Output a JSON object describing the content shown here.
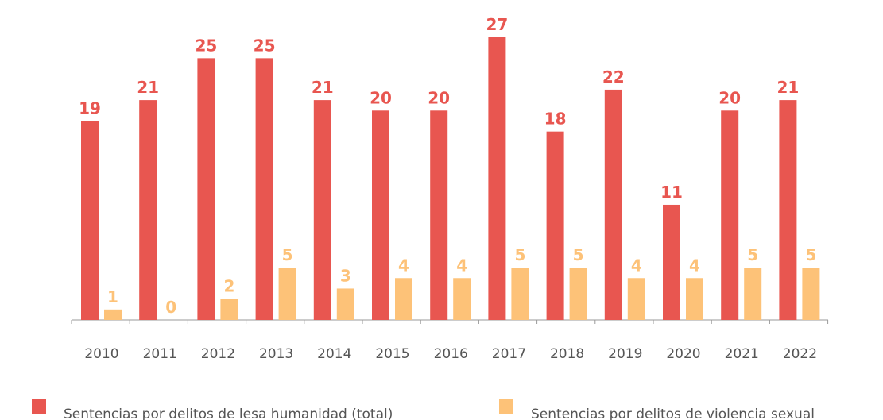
{
  "chart_data": {
    "type": "bar",
    "categories": [
      "2010",
      "2011",
      "2012",
      "2013",
      "2014",
      "2015",
      "2016",
      "2017",
      "2018",
      "2019",
      "2020",
      "2021",
      "2022"
    ],
    "series": [
      {
        "name": "Sentencias por delitos de lesa humanidad (total)",
        "color": "#e85650",
        "values": [
          19,
          21,
          25,
          25,
          21,
          20,
          20,
          27,
          18,
          22,
          11,
          20,
          21
        ]
      },
      {
        "name": "Sentencias por delitos de violencia sexual",
        "color": "#fdc278",
        "values": [
          1,
          0,
          2,
          5,
          3,
          4,
          4,
          5,
          5,
          4,
          4,
          5,
          5
        ]
      }
    ]
  }
}
